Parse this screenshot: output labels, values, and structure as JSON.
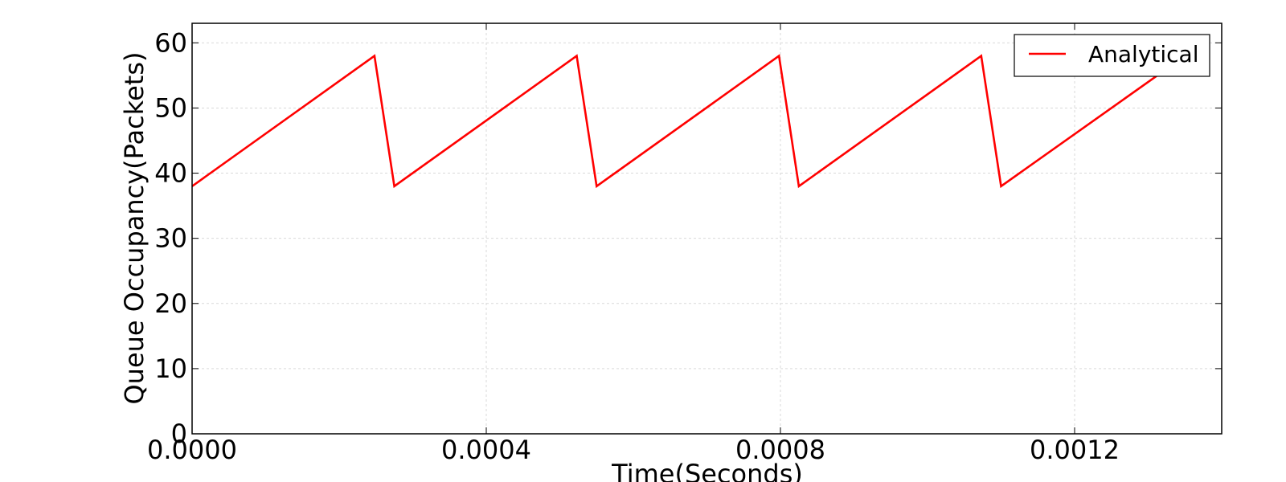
{
  "chart_data": {
    "type": "line",
    "title": "",
    "xlabel": "Time(Seconds)",
    "ylabel": "Queue Occupancy(Packets)",
    "xlim": [
      0,
      0.0014
    ],
    "ylim": [
      0,
      63
    ],
    "xticks": [
      0,
      0.0004,
      0.0008,
      0.0012
    ],
    "xtick_labels": [
      "0.0000",
      "0.0004",
      "0.0008",
      "0.0012"
    ],
    "yticks": [
      0,
      10,
      20,
      30,
      40,
      50,
      60
    ],
    "ytick_labels": [
      "0",
      "10",
      "20",
      "30",
      "40",
      "50",
      "60"
    ],
    "grid": true,
    "legend_position": "top-right",
    "series": [
      {
        "name": "Analytical",
        "color": "#ff0000",
        "x": [
          0.0,
          0.000248,
          0.000275,
          0.000523,
          0.00055,
          0.000798,
          0.000825,
          0.001073,
          0.0011,
          0.00135
        ],
        "y": [
          38,
          58,
          38,
          58,
          38,
          58,
          38,
          58,
          38,
          58
        ]
      }
    ]
  }
}
